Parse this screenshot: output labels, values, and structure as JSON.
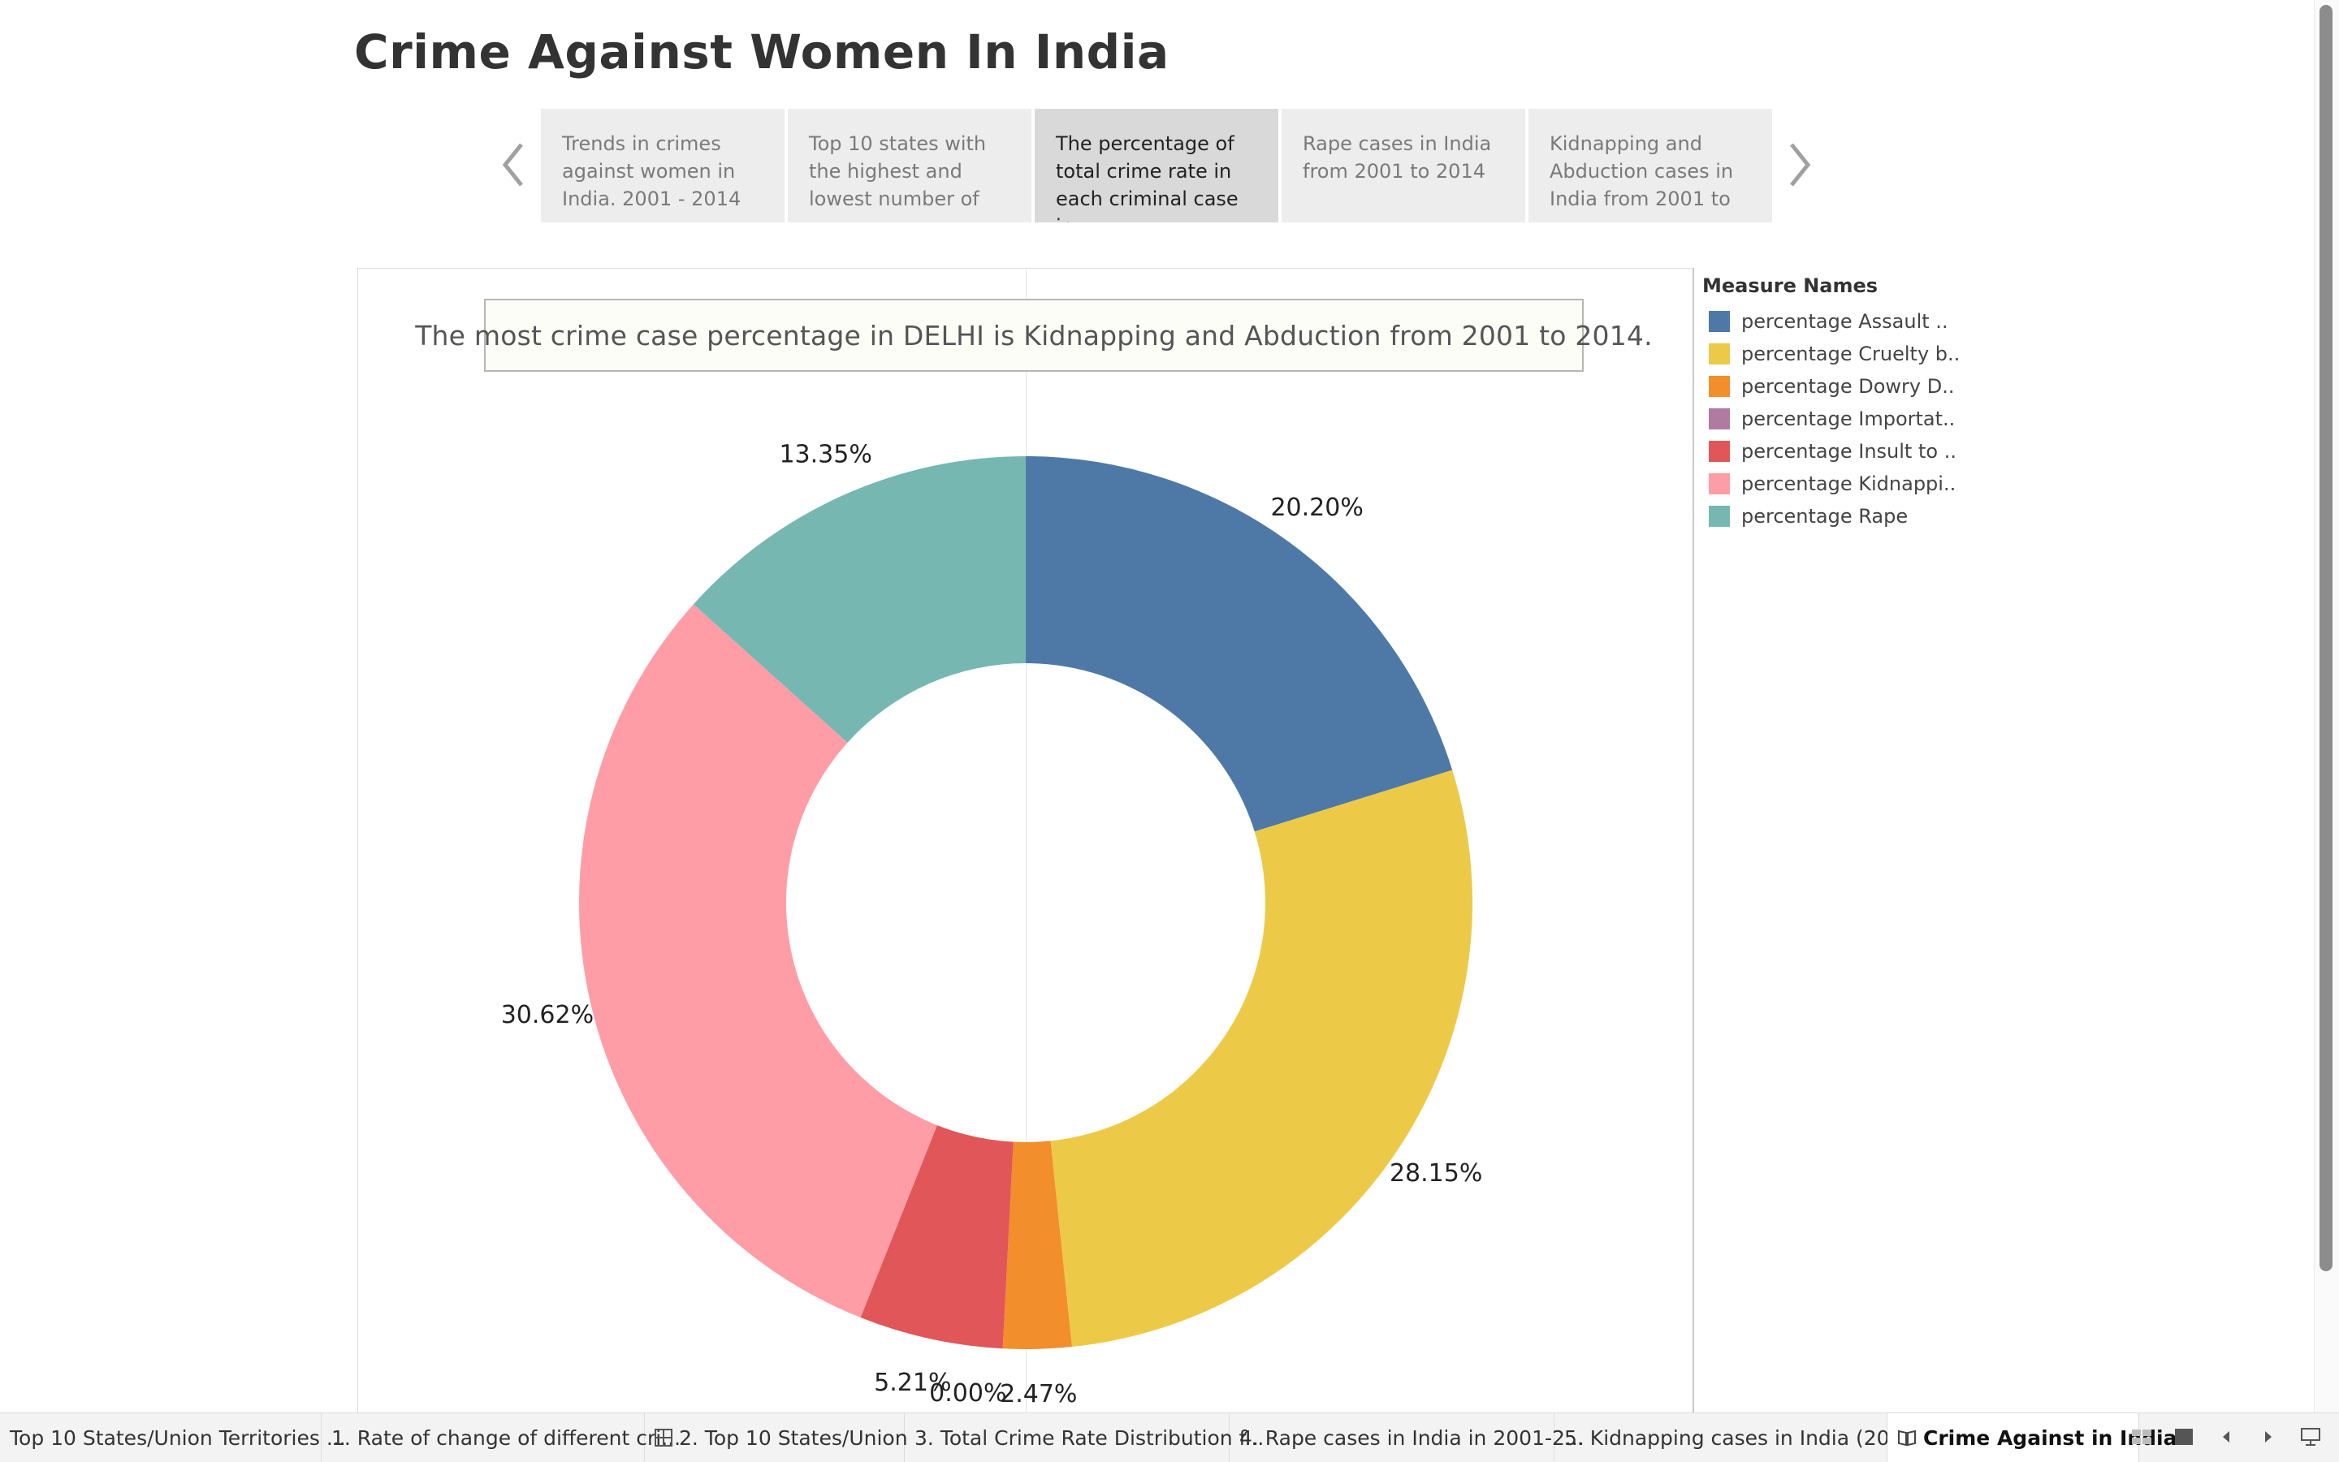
{
  "page": {
    "title": "Crime Against Women In India"
  },
  "story": {
    "points": [
      {
        "label": "Trends in crimes against women in India. 2001 - 2014",
        "active": false
      },
      {
        "label": "Top 10 states with the highest and lowest number of",
        "active": false
      },
      {
        "label": "The percentage of total crime rate in each criminal case in",
        "active": true
      },
      {
        "label": "Rape cases in India from 2001 to 2014",
        "active": false
      },
      {
        "label": "Kidnapping and Abduction cases in India from 2001 to",
        "active": false
      }
    ],
    "prev_icon": "chevron-left-icon",
    "next_icon": "chevron-right-icon"
  },
  "caption": "The most crime case percentage in DELHI is Kidnapping and Abduction from 2001 to 2014.",
  "legend": {
    "title": "Measure Names",
    "items": [
      {
        "label": "percentage Assault ..",
        "color": "#4e79a7"
      },
      {
        "label": "percentage Cruelty b..",
        "color": "#edc948"
      },
      {
        "label": "percentage Dowry D..",
        "color": "#f28e2b"
      },
      {
        "label": "percentage Importat..",
        "color": "#b07aa1"
      },
      {
        "label": "percentage Insult to ..",
        "color": "#e15759"
      },
      {
        "label": "percentage Kidnappi..",
        "color": "#ff9da7"
      },
      {
        "label": "percentage Rape",
        "color": "#76b7b2"
      }
    ]
  },
  "chart_data": {
    "type": "pie",
    "donut": true,
    "title": "",
    "slices": [
      {
        "name": "percentage Assault ..",
        "value": 20.2,
        "label": "20.20%",
        "color": "#4e79a7"
      },
      {
        "name": "percentage Cruelty b..",
        "value": 28.15,
        "label": "28.15%",
        "color": "#edc948"
      },
      {
        "name": "percentage Dowry D..",
        "value": 2.47,
        "label": "2.47%",
        "color": "#f28e2b"
      },
      {
        "name": "percentage Importat..",
        "value": 0.0,
        "label": "0.00%",
        "color": "#b07aa1"
      },
      {
        "name": "percentage Insult to ..",
        "value": 5.21,
        "label": "5.21%",
        "color": "#e15759"
      },
      {
        "name": "percentage Kidnappi..",
        "value": 30.62,
        "label": "30.62%",
        "color": "#ff9da7"
      },
      {
        "name": "percentage Rape",
        "value": 13.35,
        "label": "13.35%",
        "color": "#76b7b2"
      }
    ],
    "legend_position": "right"
  },
  "sheet_tabs": [
    {
      "label": "Top 10 States/Union Territories ...",
      "icon": "",
      "active": false
    },
    {
      "label": "1. Rate of change of different cri...",
      "icon": "",
      "active": false
    },
    {
      "label": "2. Top 10 States/Union",
      "icon": "table-icon",
      "active": false
    },
    {
      "label": "3. Total Crime Rate Distribution f...",
      "icon": "",
      "active": false
    },
    {
      "label": "4. Rape cases in India in 2001-2...",
      "icon": "",
      "active": false
    },
    {
      "label": "5. Kidnapping cases in India (20...",
      "icon": "",
      "active": false
    },
    {
      "label": "Crime Against in India",
      "icon": "story-icon",
      "active": true
    }
  ],
  "bottom_controls": [
    "sheet-sorter-icon",
    "filmstrip-icon",
    "prev-sheet-icon",
    "next-sheet-icon",
    "presentation-icon"
  ]
}
